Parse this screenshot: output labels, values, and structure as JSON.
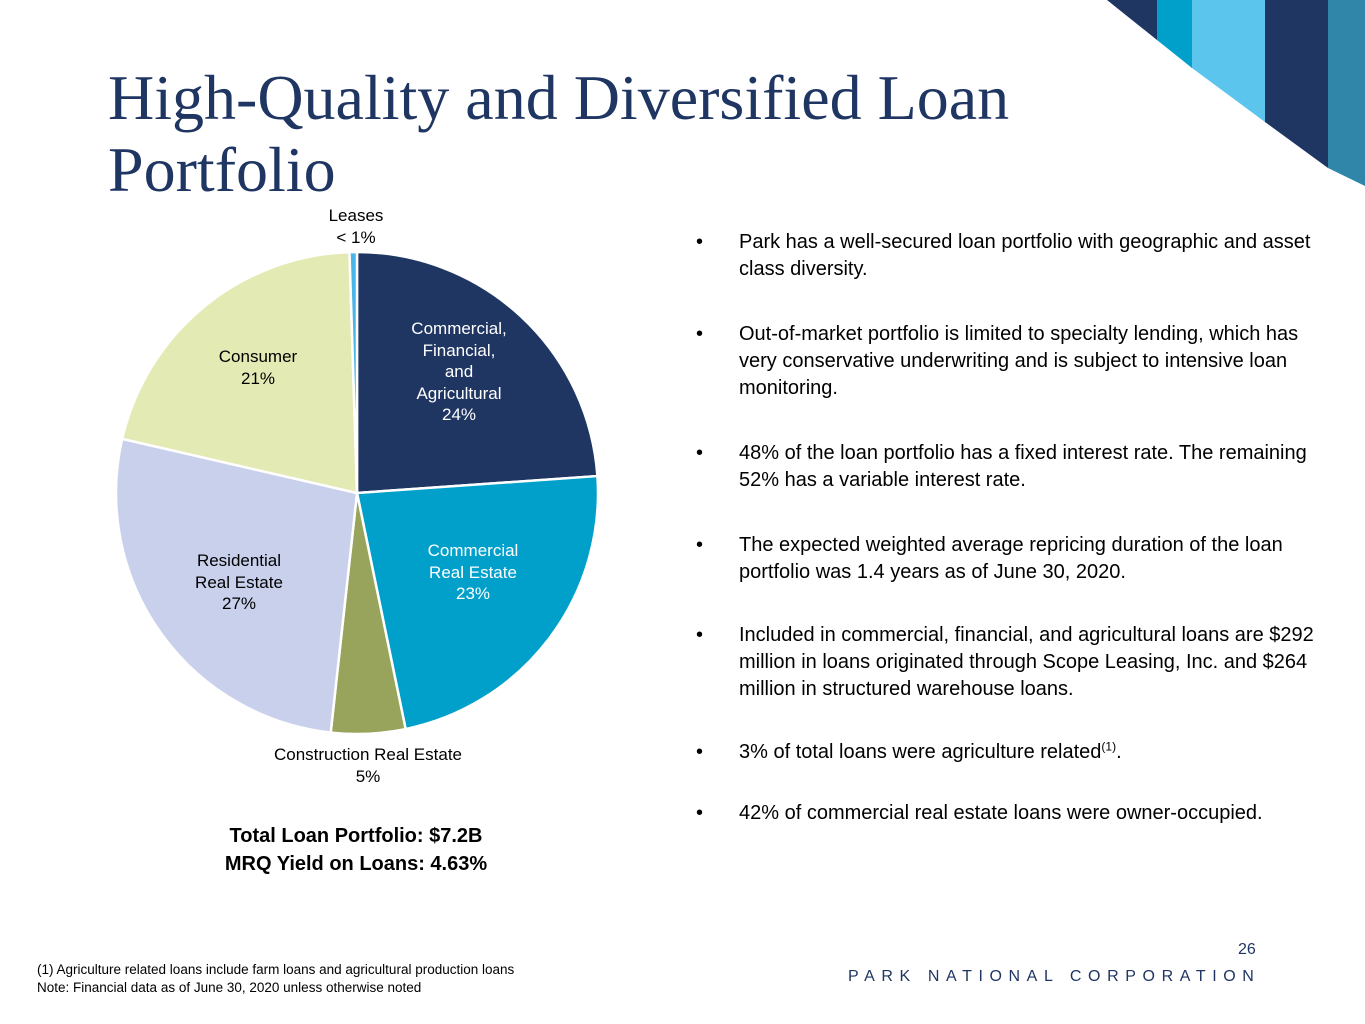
{
  "title": "High-Quality and Diversified Loan Portfolio",
  "colors": {
    "navy": "#1f3562",
    "teal": "#00a0cb",
    "olive": "#98a45c",
    "lavender": "#c8d0ec",
    "cream": "#e4eab4",
    "light_blue": "#5bc5ee",
    "slate_blue": "#2f86a8",
    "leases_blue": "#4ab5e6"
  },
  "chart_data": {
    "type": "pie",
    "title": "",
    "slices": [
      {
        "label": "Commercial, Financial, and Agricultural",
        "value": 24,
        "display": "24%",
        "color": "#1f3562"
      },
      {
        "label": "Commercial Real Estate",
        "value": 23,
        "display": "23%",
        "color": "#00a0cb"
      },
      {
        "label": "Construction Real Estate",
        "value": 5,
        "display": "5%",
        "color": "#98a45c"
      },
      {
        "label": "Residential Real Estate",
        "value": 27,
        "display": "27%",
        "color": "#c8d0ec"
      },
      {
        "label": "Consumer",
        "value": 21,
        "display": "21%",
        "color": "#e4eab4"
      },
      {
        "label": "Leases",
        "value": 0.5,
        "display": "< 1%",
        "color": "#4ab5e6"
      }
    ]
  },
  "labels": {
    "leases": {
      "name": "Leases",
      "pct": "< 1%"
    },
    "cfa": {
      "l1": "Commercial,",
      "l2": "Financial,",
      "l3": "and",
      "l4": "Agricultural",
      "pct": "24%"
    },
    "consumer": {
      "name": "Consumer",
      "pct": "21%"
    },
    "cre": {
      "l1": "Commercial",
      "l2": "Real Estate",
      "pct": "23%"
    },
    "residential": {
      "l1": "Residential",
      "l2": "Real Estate",
      "pct": "27%"
    },
    "construction": {
      "name": "Construction Real Estate",
      "pct": "5%"
    }
  },
  "totals": {
    "portfolio": "Total Loan Portfolio: $7.2B",
    "yield": "MRQ Yield on Loans: 4.63%"
  },
  "bullets": [
    "Park has a well-secured loan portfolio with geographic and asset class diversity.",
    "Out-of-market portfolio is limited to specialty lending, which has very conservative underwriting and is subject to intensive loan monitoring.",
    "48% of the loan portfolio has a fixed interest rate.  The remaining 52% has a variable interest rate.",
    "The expected weighted average repricing duration of the loan portfolio was 1.4 years as of June 30, 2020.",
    "Included in commercial, financial, and agricultural loans are $292 million in loans originated through Scope Leasing, Inc. and $264 million in structured warehouse loans."
  ],
  "bullet_ag": {
    "text": "3% of total loans were agriculture related",
    "sup": "(1)",
    "tail": "."
  },
  "bullet_last": "42% of commercial real estate loans were owner-occupied.",
  "bullet_char": "•",
  "footnotes": {
    "f1": "(1)    Agriculture related loans include farm loans and agricultural production loans",
    "note": "Note: Financial data as of June 30, 2020 unless otherwise noted"
  },
  "page_number": "26",
  "company": "PARK NATIONAL CORPORATION"
}
